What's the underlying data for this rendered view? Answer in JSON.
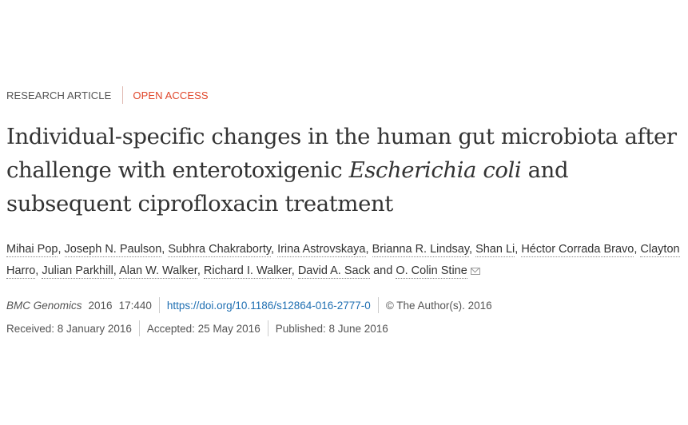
{
  "article_type": "RESEARCH ARTICLE",
  "access": "OPEN ACCESS",
  "title": {
    "part1": "Individual-specific changes in the human gut microbiota after challenge with enterotoxigenic ",
    "italic": "Escherichia coli",
    "part2": " and subsequent ciprofloxacin treatment"
  },
  "authors": [
    "Mihai Pop",
    "Joseph N. Paulson",
    "Subhra Chakraborty",
    "Irina Astrovskaya",
    "Brianna R. Lindsay",
    "Shan Li",
    "Héctor Corrada Bravo",
    "Clayton Harro",
    "Julian Parkhill",
    "Alan W. Walker",
    "Richard I. Walker",
    "David A. Sack",
    "O. Colin Stine"
  ],
  "author_conj": " and ",
  "icons": {
    "contact": "mail-icon"
  },
  "citation": {
    "journal": "BMC Genomics",
    "year": "2016",
    "volume": "17:440",
    "doi": "https://doi.org/10.1186/s12864-016-2777-0",
    "copyright": "© The Author(s). 2016"
  },
  "dates": {
    "received": "Received: 8 January 2016",
    "accepted": "Accepted: 25 May 2016",
    "published": "Published: 8 June 2016"
  },
  "colors": {
    "open_access": "#e0462a",
    "link": "#1f6fb2"
  }
}
